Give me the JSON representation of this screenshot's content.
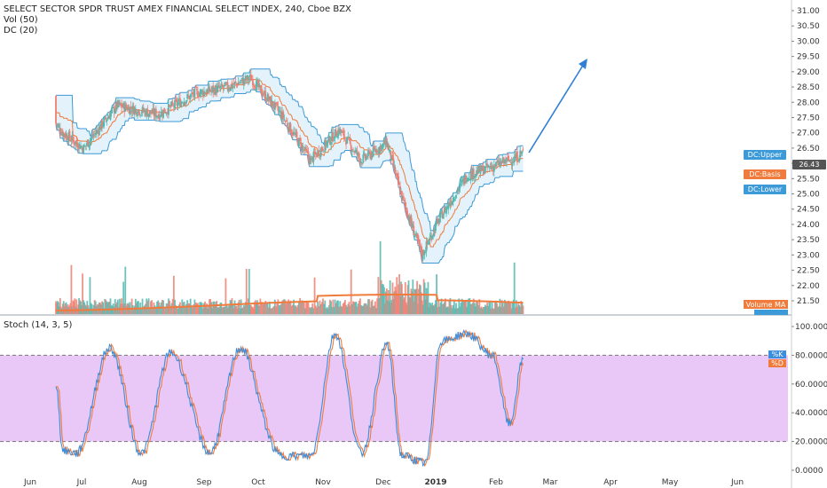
{
  "legend": {
    "title": "SELECT SECTOR SPDR TRUST AMEX FINANCIAL SELECT INDEX, 240, Cboe BZX",
    "vol": "Vol (50)",
    "dc": "DC (20)",
    "stoch": "Stoch (14, 3, 5)"
  },
  "colors": {
    "up": "#53b9b0",
    "down": "#ef7f72",
    "dc_band": "#3c9ad8",
    "dc_basis": "#f07b3c",
    "dc_fill": "#e3f2fb",
    "vol_ma": "#f07b3c",
    "stoch_k": "#3c8ddc",
    "stoch_d": "#f07b3c",
    "stoch_fill": "#e9c8f7",
    "arrow": "#2f7fd6"
  },
  "chart_data": [
    {
      "type": "candlestick",
      "name": "price",
      "y_axis_ticks": [
        "31.00",
        "30.50",
        "30.00",
        "29.50",
        "29.00",
        "28.50",
        "28.00",
        "27.50",
        "27.00",
        "26.50",
        "26.00",
        "25.50",
        "25.00",
        "24.50",
        "24.00",
        "23.50",
        "23.00",
        "22.50",
        "22.00",
        "21.50"
      ],
      "ylim": [
        21.5,
        31.2
      ],
      "x_axis_ticks": [
        "Jun",
        "Jul",
        "Aug",
        "Sep",
        "Oct",
        "Nov",
        "Dec",
        "2019",
        "Feb",
        "Mar",
        "Apr",
        "May",
        "Jun"
      ],
      "close_key_points": [
        {
          "date": "May 24",
          "close": 28.2
        },
        {
          "date": "Jun 8",
          "close": 27.9
        },
        {
          "date": "Jun 20",
          "close": 27.0
        },
        {
          "date": "Jul 2",
          "close": 26.5
        },
        {
          "date": "Jul 20",
          "close": 27.9
        },
        {
          "date": "Aug 10",
          "close": 27.6
        },
        {
          "date": "Aug 28",
          "close": 28.3
        },
        {
          "date": "Sep 14",
          "close": 28.5
        },
        {
          "date": "Sep 27",
          "close": 28.8
        },
        {
          "date": "Oct 12",
          "close": 27.6
        },
        {
          "date": "Oct 26",
          "close": 26.1
        },
        {
          "date": "Nov 9",
          "close": 27.1
        },
        {
          "date": "Nov 20",
          "close": 26.1
        },
        {
          "date": "Dec 3",
          "close": 26.7
        },
        {
          "date": "Dec 12",
          "close": 24.9
        },
        {
          "date": "Dec 24",
          "close": 23.0
        },
        {
          "date": "Jan 4",
          "close": 24.3
        },
        {
          "date": "Jan 17",
          "close": 25.6
        },
        {
          "date": "Jan 30",
          "close": 25.9
        },
        {
          "date": "Feb 12",
          "close": 26.2
        },
        {
          "date": "Feb 15",
          "close": 26.43
        }
      ],
      "last_price": "26.43",
      "labels": [
        "DC:Upper",
        "26.43",
        "DC:Basis",
        "DC:Lower"
      ]
    },
    {
      "type": "bar",
      "name": "volume",
      "labels": [
        "Volume MA",
        "Volume"
      ],
      "note": "volume bars with moving average"
    },
    {
      "type": "line",
      "name": "stochastic",
      "y_axis_ticks": [
        "100.0000",
        "80.0000",
        "60.0000",
        "40.0000",
        "20.0000",
        "0.0000"
      ],
      "ylim": [
        0,
        100
      ],
      "bands": [
        20,
        80
      ],
      "series_labels": [
        "%K",
        "%D"
      ],
      "k_key_points": [
        {
          "date": "May 24",
          "k": 60
        },
        {
          "date": "May 28",
          "k": 14
        },
        {
          "date": "Jun 4",
          "k": 90
        },
        {
          "date": "Jun 15",
          "k": 15
        },
        {
          "date": "Jun 28",
          "k": 12
        },
        {
          "date": "Jul 16",
          "k": 85
        },
        {
          "date": "Aug 2",
          "k": 12
        },
        {
          "date": "Aug 16",
          "k": 82
        },
        {
          "date": "Sep 4",
          "k": 12
        },
        {
          "date": "Sep 21",
          "k": 85
        },
        {
          "date": "Oct 12",
          "k": 10
        },
        {
          "date": "Oct 26",
          "k": 10
        },
        {
          "date": "Nov 7",
          "k": 95
        },
        {
          "date": "Nov 20",
          "k": 12
        },
        {
          "date": "Dec 3",
          "k": 88
        },
        {
          "date": "Dec 12",
          "k": 10
        },
        {
          "date": "Dec 26",
          "k": 5
        },
        {
          "date": "Jan 4",
          "k": 90
        },
        {
          "date": "Jan 17",
          "k": 95
        },
        {
          "date": "Jan 30",
          "k": 80
        },
        {
          "date": "Feb 8",
          "k": 32
        },
        {
          "date": "Feb 15",
          "k": 77
        }
      ],
      "k_label": "77.xxxx"
    }
  ]
}
